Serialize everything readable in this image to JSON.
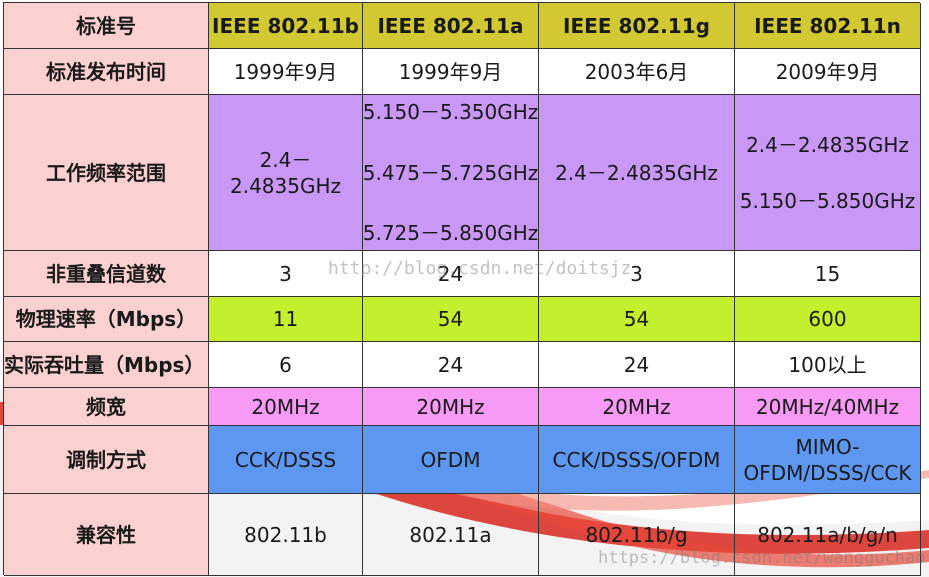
{
  "header": {
    "label": "标准号",
    "standards": [
      "IEEE 802.11b",
      "IEEE 802.11a",
      "IEEE 802.11g",
      "IEEE 802.11n"
    ]
  },
  "rows": {
    "release": {
      "label": "标准发布时间",
      "values": [
        "1999年9月",
        "1999年9月",
        "2003年6月",
        "2009年9月"
      ]
    },
    "frequency": {
      "label": "工作频率范围",
      "b": [
        "2.4－",
        "2.4835GHz"
      ],
      "a": [
        "5.150－5.350GHz",
        "5.475－5.725GHz",
        "5.725－5.850GHz"
      ],
      "g": "2.4－2.4835GHz",
      "n": [
        "2.4－2.4835GHz",
        "5.150－5.850GHz"
      ]
    },
    "channels": {
      "label": "非重叠信道数",
      "values": [
        "3",
        "24",
        "3",
        "15"
      ]
    },
    "phy_rate": {
      "label": "物理速率（Mbps）",
      "values": [
        "11",
        "54",
        "54",
        "600"
      ]
    },
    "throughput": {
      "label": "实际吞吐量（Mbps）",
      "values": [
        "6",
        "24",
        "24",
        "100以上"
      ]
    },
    "bandwidth": {
      "label": "频宽",
      "values": [
        "20MHz",
        "20MHz",
        "20MHz",
        "20MHz/40MHz"
      ]
    },
    "modulation": {
      "label": "调制方式",
      "values": [
        "CCK/DSSS",
        "OFDM",
        "CCK/DSSS/OFDM"
      ],
      "n": [
        "MIMO-",
        "OFDM/DSSS/CCK"
      ]
    },
    "compat": {
      "label": "兼容性",
      "values": [
        "802.11b",
        "802.11a",
        "802.11b/g",
        "802.11a/b/g/n"
      ]
    }
  },
  "watermarks": [
    "http://blog.csdn.net/doitsjz",
    "https://blog.csdn.net/wangguchao"
  ],
  "colors": {
    "label_bg": "#fbd0d0",
    "header_bg": "#d2c832",
    "purple": "#c997f5",
    "lime": "#c4ef2d",
    "pink": "#f79af5",
    "blue": "#5e97f2",
    "swoosh": "#d8261e"
  }
}
